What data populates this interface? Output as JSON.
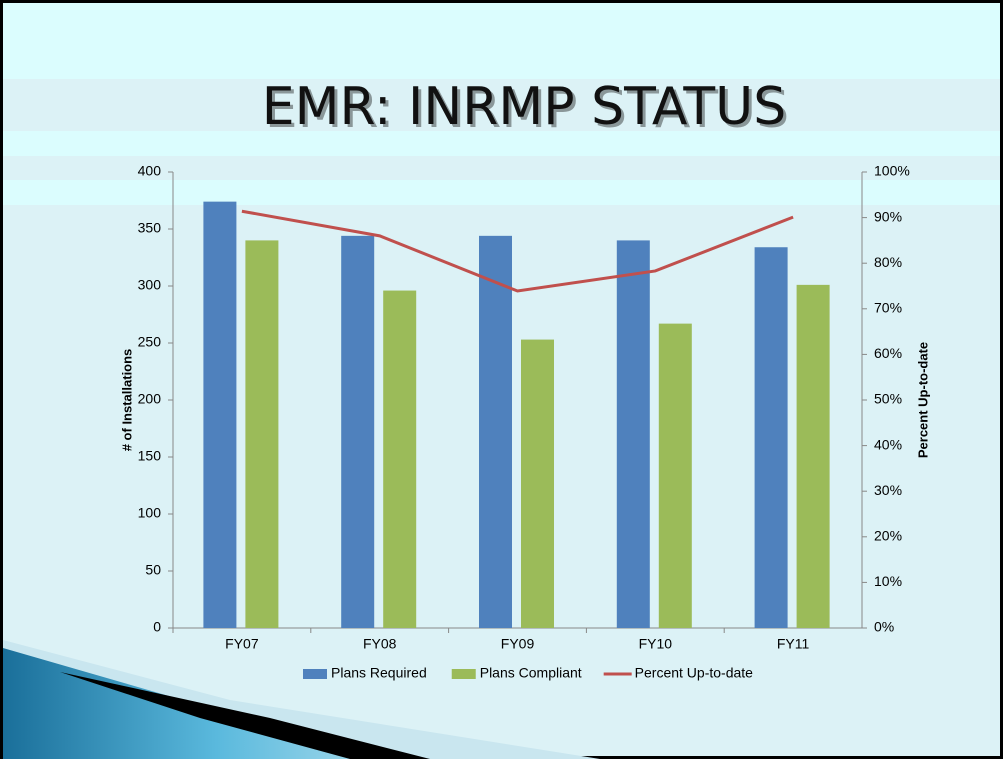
{
  "chart_data": {
    "type": "bar_line",
    "title": "EMR: INRMP STATUS",
    "categories": [
      "FY07",
      "FY08",
      "FY09",
      "FY10",
      "FY11"
    ],
    "y_label": "# of Installations",
    "y2_label": "Percent Up-to-date",
    "series": [
      {
        "name": "Plans Required",
        "color": "#4f81bd",
        "type": "bar",
        "values": [
          374,
          344,
          344,
          340,
          334
        ]
      },
      {
        "name": "Plans Compliant",
        "color": "#9bbb59",
        "type": "bar",
        "values": [
          340,
          296,
          253,
          267,
          301
        ]
      },
      {
        "name": "Percent Up-to-date",
        "color": "#c0504d",
        "type": "line",
        "axis": "y2",
        "values": [
          91.4,
          86,
          73.9,
          78.3,
          90.1
        ]
      }
    ],
    "ylim": [
      0,
      400
    ],
    "yticks": [
      0,
      50,
      100,
      150,
      200,
      250,
      300,
      350,
      400
    ],
    "y2lim": [
      0,
      100
    ],
    "y2ticks": [
      {
        "value": 0,
        "label": "0%"
      },
      {
        "value": 10,
        "label": "10%"
      },
      {
        "value": 20,
        "label": "20%"
      },
      {
        "value": 30,
        "label": "30%"
      },
      {
        "value": 40,
        "label": "40%"
      },
      {
        "value": 50,
        "label": "50%"
      },
      {
        "value": 60,
        "label": "60%"
      },
      {
        "value": 70,
        "label": "70%"
      },
      {
        "value": 80,
        "label": "80%"
      },
      {
        "value": 90,
        "label": "90%"
      },
      {
        "value": 100,
        "label": "100%"
      }
    ],
    "legend": "bottom"
  }
}
